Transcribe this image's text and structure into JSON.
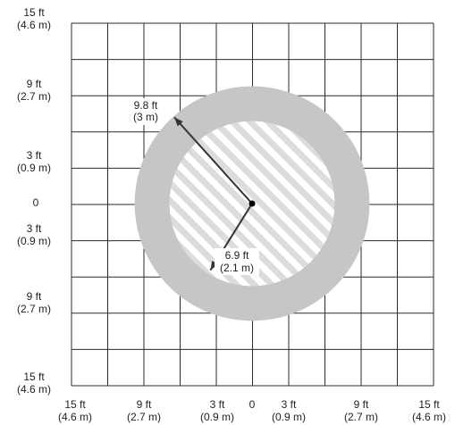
{
  "colors": {
    "grid": "#2a2a2a",
    "outer_ring": "#c6c6c6",
    "inner_zone": "#ffffff",
    "hatch": "#dcdcdc",
    "arrow": "#333333",
    "text": "#222222"
  },
  "y_labels": [
    {
      "ft": "15 ft",
      "m": "(4.6 m)"
    },
    {
      "ft": "9 ft",
      "m": "(2.7 m)"
    },
    {
      "ft": "3 ft",
      "m": "(0.9 m)"
    },
    {
      "zero": "0"
    },
    {
      "ft": "3 ft",
      "m": "(0.9 m)"
    },
    {
      "ft": "9 ft",
      "m": "(2.7 m)"
    },
    {
      "ft": "15 ft",
      "m": "(4.6 m)"
    }
  ],
  "x_labels": [
    {
      "ft": "15 ft",
      "m": "(4.6 m)"
    },
    {
      "ft": "9 ft",
      "m": "(2.7 m)"
    },
    {
      "ft": "3 ft",
      "m": "(0.9 m)"
    },
    {
      "zero": "0"
    },
    {
      "ft": "3 ft",
      "m": "(0.9 m)"
    },
    {
      "ft": "9 ft",
      "m": "(2.7 m)"
    },
    {
      "ft": "15 ft",
      "m": "(4.6 m)"
    }
  ],
  "zones": {
    "outer": {
      "ft": "9.8 ft",
      "m": "(3 m)",
      "radius_ft": 9.8
    },
    "inner": {
      "ft": "6.9 ft",
      "m": "(2.1 m)",
      "radius_ft": 6.9
    }
  }
}
